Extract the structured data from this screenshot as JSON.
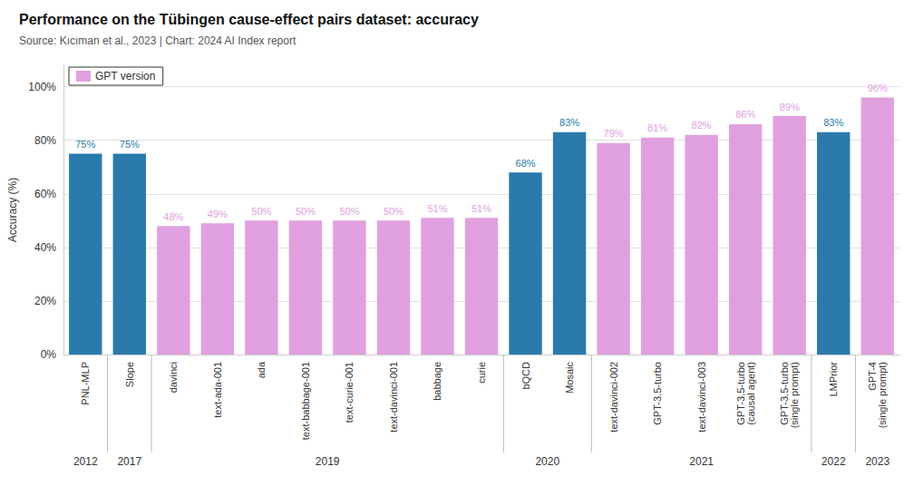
{
  "chart_data": {
    "type": "bar",
    "title": "Performance on the Tübingen cause-effect pairs dataset: accuracy",
    "subtitle": "Source: Kıcıman et al., 2023 | Chart: 2024 AI Index report",
    "ylabel": "Accuracy (%)",
    "categories": [
      "PNL-MLP",
      "Slope",
      "davinci",
      "text-ada-001",
      "ada",
      "text-babbage-001",
      "text-curie-001",
      "text-davinci-001",
      "babbage",
      "curie",
      "bQCD",
      "Mosaic",
      "text-davinci-002",
      "GPT-3.5-turbo",
      "text-davinci-003",
      "GPT-3.5-turbo\n(causal agent)",
      "GPT-3.5-turbo\n(single prompt)",
      "LMPrior",
      "GPT-4\n(single prompt)"
    ],
    "values": [
      0.75,
      0.75,
      0.48,
      0.49,
      0.5,
      0.5,
      0.5,
      0.5,
      0.51,
      0.51,
      0.68,
      0.83,
      0.79,
      0.81,
      0.82,
      0.86,
      0.89,
      0.83,
      0.96
    ],
    "value_labels": [
      "75%",
      "75%",
      "48%",
      "49%",
      "50%",
      "50%",
      "50%",
      "50%",
      "51%",
      "51%",
      "68%",
      "83%",
      "79%",
      "81%",
      "82%",
      "86%",
      "89%",
      "83%",
      "96%"
    ],
    "colors": [
      "#2a7aab",
      "#2a7aab",
      "#e0a0e0",
      "#e0a0e0",
      "#e0a0e0",
      "#e0a0e0",
      "#e0a0e0",
      "#e0a0e0",
      "#e0a0e0",
      "#e0a0e0",
      "#2a7aab",
      "#2a7aab",
      "#e0a0e0",
      "#e0a0e0",
      "#e0a0e0",
      "#e0a0e0",
      "#e0a0e0",
      "#2a7aab",
      "#e0a0e0"
    ],
    "data_labels": true,
    "ylim": [
      0,
      1.08
    ],
    "yticks": [
      {
        "value": 0,
        "label": "0%"
      },
      {
        "value": 0.2,
        "label": "20%"
      },
      {
        "value": 0.4,
        "label": "40%"
      },
      {
        "value": 0.6,
        "label": "60%"
      },
      {
        "value": 0.8,
        "label": "80%"
      },
      {
        "value": 1.0,
        "label": "100%"
      }
    ],
    "grid": true,
    "legend": "upper left",
    "legend_entries": [
      {
        "name": "GPT version",
        "color": "#e0a0e0"
      }
    ],
    "annotations": [
      {
        "text": "2012",
        "categories": [
          "PNL-MLP"
        ]
      },
      {
        "text": "2017",
        "categories": [
          "Slope"
        ]
      },
      {
        "text": "2019",
        "categories": [
          "davinci",
          "text-ada-001",
          "ada",
          "text-babbage-001",
          "text-curie-001",
          "text-davinci-001",
          "babbage",
          "curie"
        ]
      },
      {
        "text": "2020",
        "categories": [
          "bQCD",
          "Mosaic"
        ]
      },
      {
        "text": "2021",
        "categories": [
          "text-davinci-002",
          "GPT-3.5-turbo",
          "text-davinci-003",
          "GPT-3.5-turbo\n(causal agent)",
          "GPT-3.5-turbo\n(single prompt)"
        ]
      },
      {
        "text": "2022",
        "categories": [
          "LMPrior"
        ]
      },
      {
        "text": "2023",
        "categories": [
          "GPT-4\n(single prompt)"
        ]
      }
    ]
  }
}
